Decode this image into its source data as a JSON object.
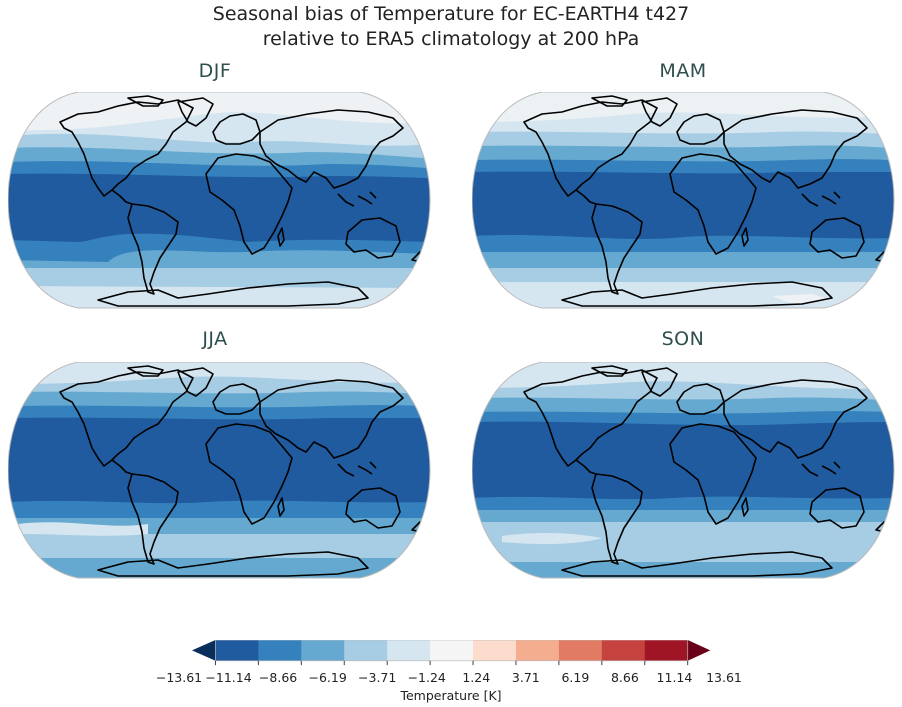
{
  "title": {
    "line1": "Seasonal bias of Temperature for EC-EARTH4 t427",
    "line2": "relative to ERA5 climatology at 200 hPa"
  },
  "panels": [
    {
      "label": "DJF"
    },
    {
      "label": "MAM"
    },
    {
      "label": "JJA"
    },
    {
      "label": "SON"
    }
  ],
  "colorbar": {
    "label": "Temperature [K]",
    "ticks": [
      "−13.61",
      "−11.14",
      "−8.66",
      "−6.19",
      "−3.71",
      "−1.24",
      "1.24",
      "3.71",
      "6.19",
      "8.66",
      "11.14",
      "13.61"
    ],
    "colors": [
      "#1f5b9e",
      "#3581bd",
      "#66a9d0",
      "#a6cde3",
      "#d5e6f1",
      "#f5f5f5",
      "#fbdccd",
      "#f4ad8f",
      "#e17b64",
      "#c5423f",
      "#a01526"
    ],
    "extend_min_color": "#0a2e5c",
    "extend_max_color": "#6a0018"
  },
  "chart_data": {
    "type": "heatmap",
    "title": "Seasonal bias of Temperature for EC-EARTH4 t427 relative to ERA5 climatology at 200 hPa",
    "subplots": [
      "DJF",
      "MAM",
      "JJA",
      "SON"
    ],
    "projection": "Robinson (global, coastlines)",
    "colorbar_label": "Temperature [K]",
    "levels": [
      -13.61,
      -11.14,
      -8.66,
      -6.19,
      -3.71,
      -1.24,
      1.24,
      3.71,
      6.19,
      8.66,
      11.14,
      13.61
    ],
    "extend": "both",
    "colormap": "RdBu_r",
    "zonal_bias_summary": {
      "DJF": {
        "tropics": "-13.61 to -11.14",
        "midlatitudes": "-11.14 to -6.19",
        "poles": "-3.71 to 1.24"
      },
      "MAM": {
        "tropics": "-13.61 to -11.14",
        "midlatitudes": "-11.14 to -6.19",
        "poles": "-3.71 to 1.24"
      },
      "JJA": {
        "tropics": "-13.61 to -11.14",
        "midlatitudes": "-11.14 to -6.19",
        "poles": "-6.19 to -1.24"
      },
      "SON": {
        "tropics": "-13.61 to -11.14",
        "midlatitudes": "-11.14 to -6.19",
        "poles": "-6.19 to -1.24"
      }
    }
  }
}
